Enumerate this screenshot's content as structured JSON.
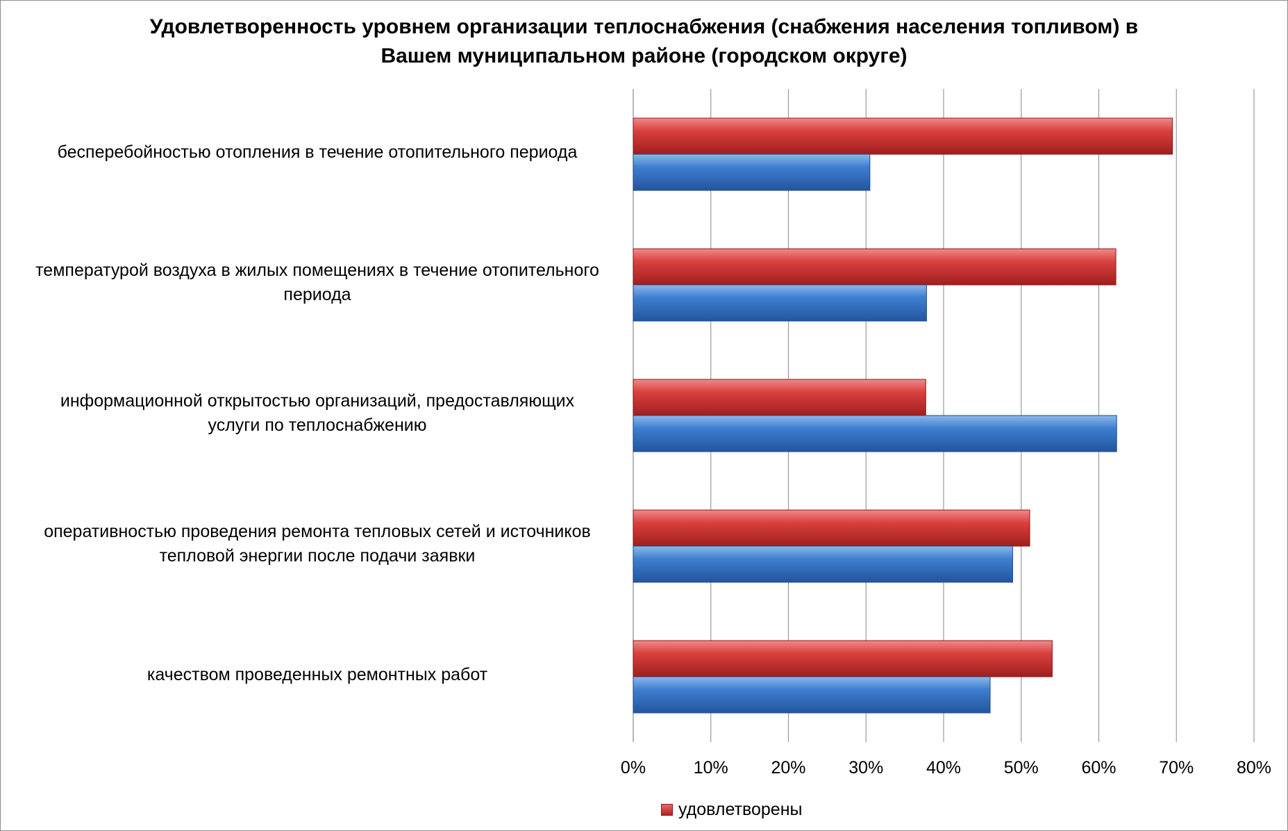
{
  "chart_data": {
    "type": "bar",
    "orientation": "horizontal",
    "title_lines": [
      "Удовлетворенность уровнем организации теплоснабжения (снабжения населения топливом) в",
      "Вашем муниципальном районе (городском округе)"
    ],
    "categories": [
      [
        "бесперебойностью  отопления в течение отопительного периода"
      ],
      [
        "температурой  воздуха в жилых помещениях в течение отопительного",
        "периода"
      ],
      [
        "информационной открытостью организаций, предоставляющих",
        "услуги по теплоснабжению"
      ],
      [
        "оперативностью проведения ремонта тепловых сетей и источников",
        "тепловой энергии после подачи заявки"
      ],
      [
        "качеством проведенных ремонтных работ"
      ]
    ],
    "series": [
      {
        "name": "удовлетворены",
        "color": "#c0392b",
        "values": [
          69.5,
          62.2,
          37.7,
          51.1,
          54.0
        ]
      },
      {
        "color": "#2e6fc4",
        "values": [
          30.5,
          37.8,
          62.3,
          48.9,
          46.0
        ]
      }
    ],
    "xlim": [
      0,
      80
    ],
    "xticks": [
      "0%",
      "10%",
      "20%",
      "30%",
      "40%",
      "50%",
      "60%",
      "70%",
      "80%"
    ],
    "grid": true,
    "legend": {
      "placement": "bottom"
    }
  }
}
